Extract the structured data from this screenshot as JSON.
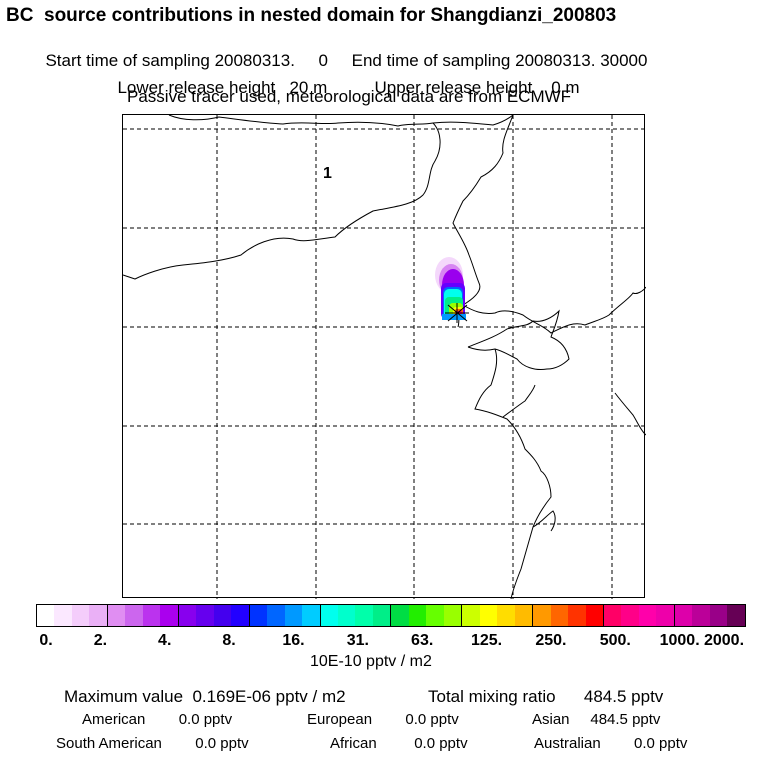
{
  "title": "BC  source contributions in nested domain for Shangdianzi_200803",
  "sampling": {
    "start_label": "Start time of sampling 20080313.     0",
    "end_label": "End time of sampling 20080313. 30000"
  },
  "release": {
    "lower_label": "Lower release height   20 m",
    "upper_label": "Upper release height    0 m"
  },
  "tracer_note": "Passive tracer used, meteorological data are from ECMWF",
  "map": {
    "region_label": "1",
    "receptor_marker": "receptor-star"
  },
  "colorbar": {
    "colors": [
      "#ffffff",
      "#fbe8ff",
      "#f4cdfb",
      "#eab0f6",
      "#e08ef2",
      "#cc66ee",
      "#bb33ee",
      "#aa00ee",
      "#8800ee",
      "#6600ee",
      "#4400ee",
      "#2200ff",
      "#0033ff",
      "#0066ff",
      "#0099ff",
      "#00ccff",
      "#00ffee",
      "#00ffcc",
      "#00ffaa",
      "#00ee88",
      "#00dd44",
      "#22ee00",
      "#66ff00",
      "#99ff00",
      "#ccff00",
      "#ffff00",
      "#ffdd00",
      "#ffbb00",
      "#ff9900",
      "#ff6600",
      "#ff3300",
      "#ff0000",
      "#ff0066",
      "#ff0088",
      "#ff00aa",
      "#ee00aa",
      "#dd00aa",
      "#bb0099",
      "#990088",
      "#660055"
    ],
    "tick_labels": [
      "0.",
      "2.",
      "4.",
      "8.",
      "16.",
      "31.",
      "63.",
      "125.",
      "250.",
      "500.",
      "1000.",
      "2000."
    ],
    "unit": "10E-10 pptv / m2"
  },
  "summary": {
    "max_value_label": "Maximum value  0.169E-06 pptv / m2",
    "total_mixing_label": "Total mixing ratio      484.5 pptv",
    "american": "American        0.0 pptv",
    "european": "European        0.0 pptv",
    "asian": "Asian     484.5 pptv",
    "south_american": "South American        0.0 pptv",
    "african": "African         0.0 pptv",
    "australian": "Australian        0.0 pptv"
  }
}
